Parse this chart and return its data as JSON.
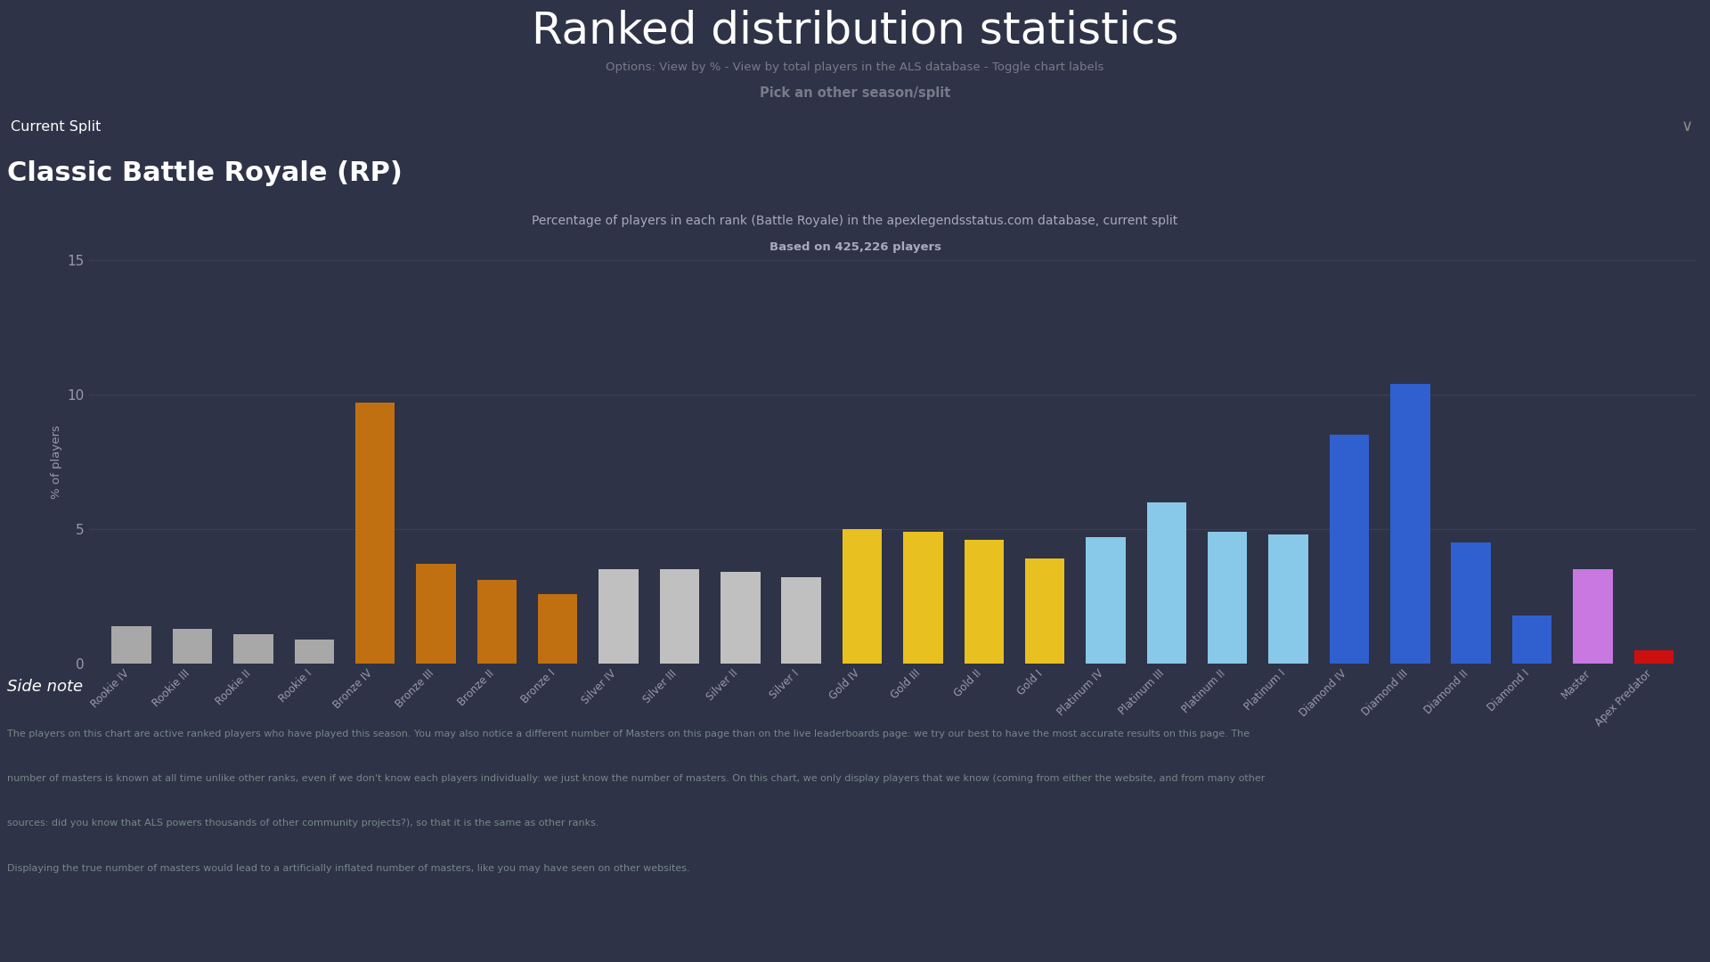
{
  "title": "Ranked distribution statistics",
  "subtitle": "Options: View by % - View by total players in the ALS database - Toggle chart labels",
  "pick_season": "Pick an other season/split",
  "current_split_label": "Current Split",
  "section_title": "Classic Battle Royale (RP)",
  "chart_title": "Percentage of players in each rank (Battle Royale) in the apexlegendsstatus.com database, current split",
  "chart_subtitle": "Based on 425,226 players",
  "ylabel": "% of players",
  "side_note_title": "Side note",
  "side_note_line1": "The players on this chart are active ranked players who have played this season. You may also notice a different number of Masters on this page than on the live leaderboards page: we try our best to have the most accurate results on this page. The",
  "side_note_line2": "number of masters is known at all time unlike other ranks, even if we don't know each players individually: we just know the number of masters. On this chart, we only display players that we know (coming from either the website, and from many other",
  "side_note_line3": "sources: did you know that ALS powers thousands of other community projects?), so that it is the same as other ranks.",
  "side_note_line4": "Displaying the true number of masters would lead to a artificially inflated number of masters, like you may have seen on other websites.",
  "bg_color": "#2e3347",
  "black_bar_color": "#000000",
  "text_color": "#ffffff",
  "grid_color": "#3a3f55",
  "axis_text_color": "#9a9aaa",
  "categories": [
    "Rookie IV",
    "Rookie III",
    "Rookie II",
    "Rookie I",
    "Bronze IV",
    "Bronze III",
    "Bronze II",
    "Bronze I",
    "Silver IV",
    "Silver III",
    "Silver II",
    "Silver I",
    "Gold IV",
    "Gold III",
    "Gold II",
    "Gold I",
    "Platinum IV",
    "Platinum III",
    "Platinum II",
    "Platinum I",
    "Diamond IV",
    "Diamond III",
    "Diamond II",
    "Diamond I",
    "Master",
    "Apex Predator"
  ],
  "values": [
    1.4,
    1.3,
    1.1,
    0.9,
    9.7,
    3.7,
    3.1,
    2.6,
    3.5,
    3.5,
    3.4,
    3.2,
    5.0,
    4.9,
    4.6,
    3.9,
    4.7,
    6.0,
    4.9,
    4.8,
    8.5,
    10.4,
    4.5,
    1.8,
    3.5,
    0.5
  ],
  "bar_colors": [
    "#a8a8a8",
    "#a8a8a8",
    "#a8a8a8",
    "#a8a8a8",
    "#c07010",
    "#c07010",
    "#c07010",
    "#c07010",
    "#c0c0c0",
    "#c0c0c0",
    "#c0c0c0",
    "#c0c0c0",
    "#e8c020",
    "#e8c020",
    "#e8c020",
    "#e8c020",
    "#88c8e8",
    "#88c8e8",
    "#88c8e8",
    "#88c8e8",
    "#3060d0",
    "#3060d0",
    "#3060d0",
    "#3060d0",
    "#c878e0",
    "#cc1010"
  ],
  "ylim": [
    0,
    15
  ],
  "yticks": [
    0,
    5,
    10,
    15
  ]
}
